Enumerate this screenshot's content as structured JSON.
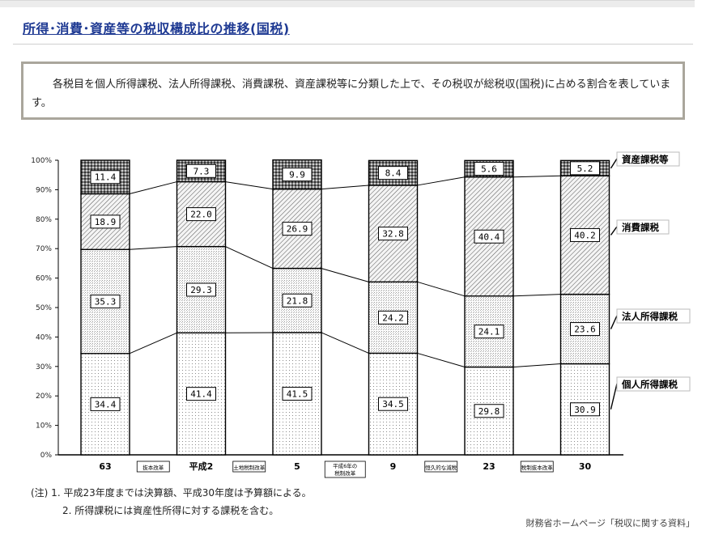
{
  "page": {
    "title": "所得･消費･資産等の税収構成比の推移(国税)",
    "description": "各税目を個人所得課税、法人所得課税、消費課税、資産課税等に分類した上で、その税収が総税収(国税)に占める割合を表しています。",
    "notes": [
      "(注) 1. 平成23年度までは決算額、平成30年度は予算額による。",
      "2. 所得課税には資産性所得に対する課税を含む。"
    ],
    "source": "財務省ホームページ「税収に関する資料」"
  },
  "chart_data": {
    "type": "bar",
    "stacked": true,
    "categories": [
      "63",
      "平成2",
      "5",
      "9",
      "23",
      "30"
    ],
    "annotations": [
      "抜本改革",
      "土地税制改革",
      "平成6年の税制改革",
      "恒久的な減税",
      "税制抜本改革"
    ],
    "ylim": [
      0,
      100
    ],
    "yticks": [
      "0%",
      "10%",
      "20%",
      "30%",
      "40%",
      "50%",
      "60%",
      "70%",
      "80%",
      "90%",
      "100%"
    ],
    "grid": false,
    "series": [
      {
        "name": "個人所得課税",
        "values": [
          34.4,
          41.4,
          41.5,
          34.5,
          29.8,
          30.9
        ],
        "labels": [
          "34.4",
          "41.4",
          "41.5",
          "34.5",
          "29.8",
          "30.9"
        ]
      },
      {
        "name": "法人所得課税",
        "values": [
          35.3,
          29.3,
          21.8,
          24.2,
          24.1,
          23.6
        ],
        "labels": [
          "35.3",
          "29.3",
          "21.8",
          "24.2",
          "24.1",
          "23.6"
        ]
      },
      {
        "name": "消費課税",
        "values": [
          18.9,
          22.0,
          26.9,
          32.8,
          40.4,
          40.2
        ],
        "labels": [
          "18.9",
          "22.0",
          "26.9",
          "32.8",
          "40.4",
          "40.2"
        ]
      },
      {
        "name": "資産課税等",
        "values": [
          11.4,
          7.3,
          9.9,
          8.4,
          5.6,
          5.2
        ],
        "labels": [
          "11.4",
          "7.3",
          "9.9",
          "8.4",
          "5.6",
          "5.2"
        ]
      }
    ]
  }
}
